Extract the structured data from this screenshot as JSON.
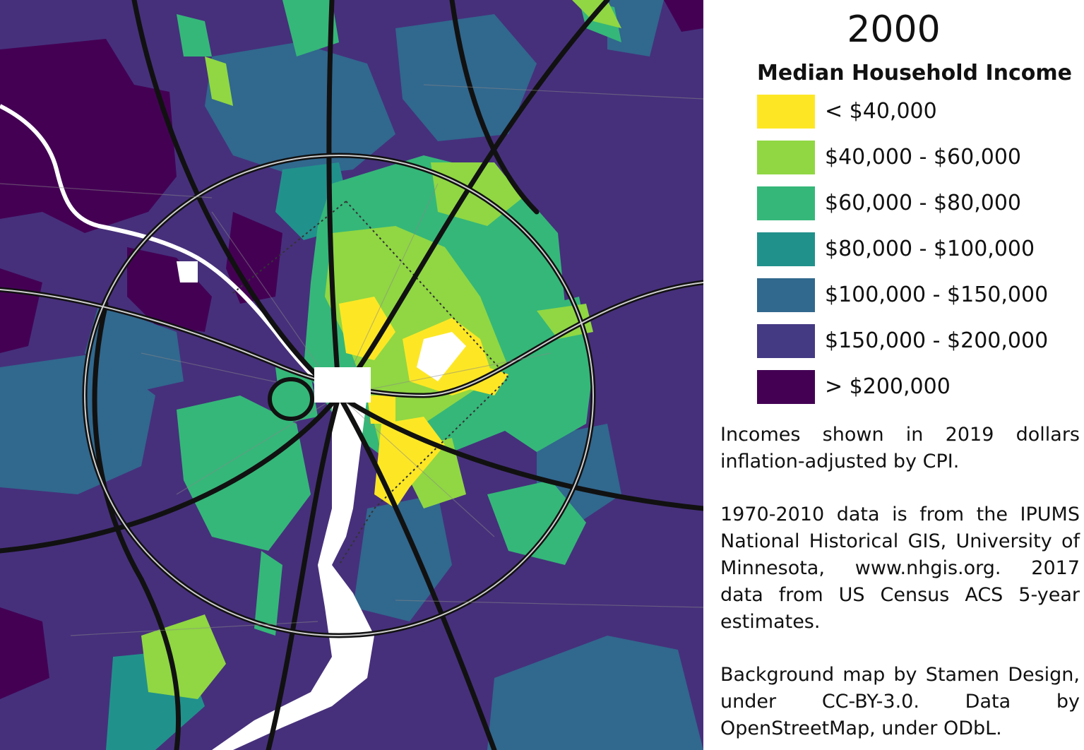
{
  "map": {
    "year": "2000",
    "legend": {
      "title": "Median Household Income",
      "items": [
        {
          "label": "< $40,000",
          "color": "#fde725"
        },
        {
          "label": "$40,000 - $60,000",
          "color": "#90d743"
        },
        {
          "label": "$60,000 - $80,000",
          "color": "#35b779"
        },
        {
          "label": "$80,000 - $100,000",
          "color": "#21918c"
        },
        {
          "label": "$100,000 - $150,000",
          "color": "#31688e"
        },
        {
          "label": "$150,000 - $200,000",
          "color": "#443983"
        },
        {
          "label": "> $200,000",
          "color": "#440154"
        }
      ]
    },
    "notes": [
      "Incomes shown in 2019 dollars inflation-adjusted by CPI.",
      "1970-2010 data is from the IPUMS National Historical GIS, University of Minnesota, www.nhgis.org. 2017 data from US Census ACS 5-year estimates.",
      "Background map by Stamen Design, under CC-BY-3.0. Data by OpenStreetMap, under ODbL."
    ]
  }
}
